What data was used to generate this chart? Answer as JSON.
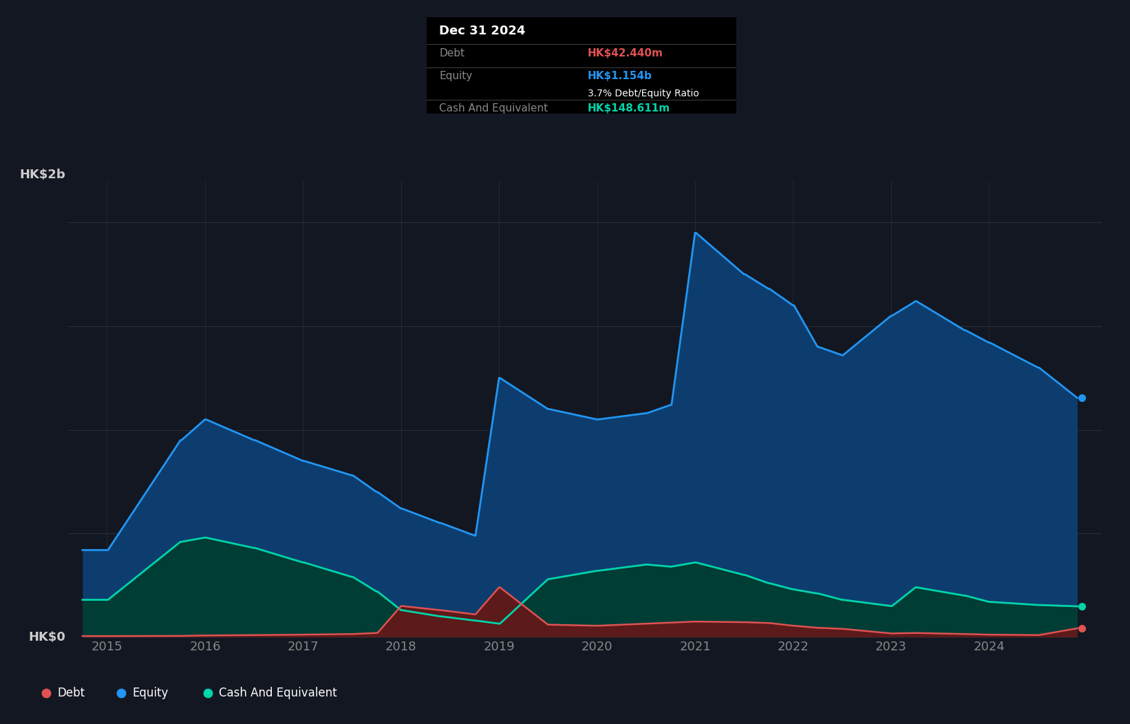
{
  "bg_color": "#131722",
  "plot_bg_color": "#131722",
  "grid_color": "#2a2e39",
  "ylabel_color": "#cccccc",
  "xlabel_color": "#888888",
  "equity_color": "#2196f3",
  "equity_fill": "#0d3d6e",
  "debt_color": "#e05252",
  "debt_fill": "#5c1a1a",
  "cash_color": "#00d4aa",
  "cash_fill": "#003d35",
  "ylim_max": 2200000000,
  "ytick_labels": [
    "HK$0",
    "HK$2b"
  ],
  "ytick_vals": [
    0,
    2000000000
  ],
  "tooltip_bg": "#000000",
  "tooltip_title": "Dec 31 2024",
  "tooltip_debt_label": "Debt",
  "tooltip_debt_value": "HK$42.440m",
  "tooltip_equity_label": "Equity",
  "tooltip_equity_value": "HK$1.154b",
  "tooltip_ratio": "3.7% Debt/Equity Ratio",
  "tooltip_cash_label": "Cash And Equivalent",
  "tooltip_cash_value": "HK$148.611m",
  "legend_debt": "Debt",
  "legend_equity": "Equity",
  "legend_cash": "Cash And Equivalent",
  "dates": [
    2014.75,
    2015.0,
    2015.01,
    2015.75,
    2015.76,
    2016.0,
    2016.01,
    2016.5,
    2016.51,
    2017.0,
    2017.01,
    2017.5,
    2017.51,
    2017.75,
    2017.76,
    2018.0,
    2018.01,
    2018.4,
    2018.41,
    2018.75,
    2018.76,
    2019.0,
    2019.01,
    2019.5,
    2019.51,
    2020.0,
    2020.01,
    2020.5,
    2020.51,
    2020.75,
    2020.76,
    2021.0,
    2021.01,
    2021.5,
    2021.51,
    2021.75,
    2021.76,
    2022.0,
    2022.01,
    2022.25,
    2022.26,
    2022.5,
    2022.51,
    2023.0,
    2023.01,
    2023.25,
    2023.26,
    2023.75,
    2023.76,
    2024.0,
    2024.01,
    2024.5,
    2024.51,
    2024.9
  ],
  "equity": [
    420000000,
    420000000,
    420000000,
    950000000,
    950000000,
    1050000000,
    1050000000,
    950000000,
    950000000,
    850000000,
    850000000,
    780000000,
    780000000,
    700000000,
    700000000,
    620000000,
    620000000,
    550000000,
    550000000,
    490000000,
    490000000,
    1250000000,
    1250000000,
    1100000000,
    1100000000,
    1050000000,
    1050000000,
    1080000000,
    1080000000,
    1120000000,
    1120000000,
    1950000000,
    1950000000,
    1750000000,
    1750000000,
    1680000000,
    1680000000,
    1600000000,
    1600000000,
    1400000000,
    1400000000,
    1360000000,
    1360000000,
    1550000000,
    1550000000,
    1620000000,
    1620000000,
    1480000000,
    1480000000,
    1420000000,
    1420000000,
    1300000000,
    1300000000,
    1154000000
  ],
  "debt": [
    5000000,
    5000000,
    5000000,
    6000000,
    6000000,
    8000000,
    8000000,
    10000000,
    10000000,
    12000000,
    12000000,
    15000000,
    15000000,
    20000000,
    20000000,
    150000000,
    150000000,
    130000000,
    130000000,
    110000000,
    110000000,
    240000000,
    240000000,
    60000000,
    60000000,
    55000000,
    55000000,
    65000000,
    65000000,
    70000000,
    70000000,
    75000000,
    75000000,
    72000000,
    72000000,
    68000000,
    68000000,
    55000000,
    55000000,
    45000000,
    45000000,
    40000000,
    40000000,
    18000000,
    18000000,
    20000000,
    20000000,
    15000000,
    15000000,
    12000000,
    12000000,
    10000000,
    10000000,
    42440000
  ],
  "cash": [
    180000000,
    180000000,
    180000000,
    460000000,
    460000000,
    480000000,
    480000000,
    430000000,
    430000000,
    360000000,
    360000000,
    290000000,
    290000000,
    220000000,
    220000000,
    130000000,
    130000000,
    100000000,
    100000000,
    80000000,
    80000000,
    65000000,
    65000000,
    280000000,
    280000000,
    320000000,
    320000000,
    350000000,
    350000000,
    340000000,
    340000000,
    360000000,
    360000000,
    300000000,
    300000000,
    260000000,
    260000000,
    230000000,
    230000000,
    210000000,
    210000000,
    180000000,
    180000000,
    150000000,
    150000000,
    240000000,
    240000000,
    200000000,
    200000000,
    170000000,
    170000000,
    155000000,
    155000000,
    148611000
  ]
}
